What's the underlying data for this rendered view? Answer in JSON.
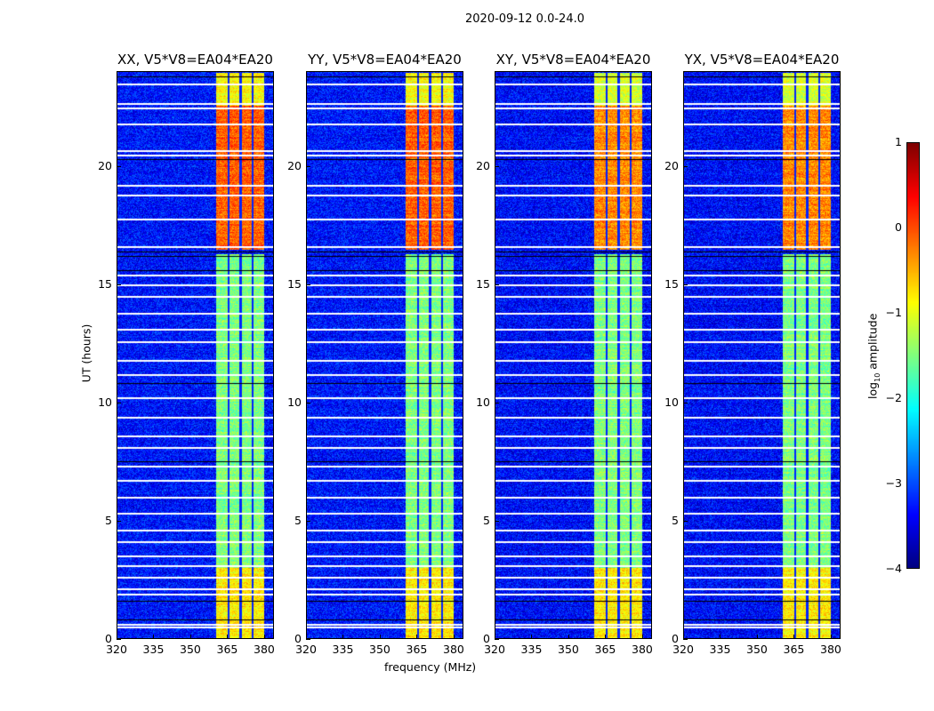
{
  "chart_data": {
    "type": "heatmap",
    "title": "2020-09-12 0.0-24.0",
    "xlabel": "frequency (MHz)",
    "ylabel": "UT (hours)",
    "xlim": [
      320,
      384
    ],
    "ylim": [
      0,
      24
    ],
    "xticks": [
      "320",
      "335",
      "350",
      "365",
      "380"
    ],
    "xtick_values": [
      320,
      335,
      350,
      365,
      380
    ],
    "yticks": [
      "0",
      "5",
      "10",
      "15",
      "20"
    ],
    "ytick_values": [
      0,
      5,
      10,
      15,
      20
    ],
    "panels": [
      {
        "title": "XX, V5*V8=EA04*EA20"
      },
      {
        "title": "YY, V5*V8=EA04*EA20"
      },
      {
        "title": "XY, V5*V8=EA04*EA20"
      },
      {
        "title": "YX, V5*V8=EA04*EA20"
      }
    ],
    "background_log_amplitude": -3.3,
    "rfi_band_mhz": [
      360.5,
      380
    ],
    "rfi_band_gaps_mhz": [
      365.5,
      370.5,
      375.5
    ],
    "rfi_band_levels": [
      {
        "ut": [
          0,
          3
        ],
        "level": -0.8
      },
      {
        "ut": [
          3,
          16.3
        ],
        "level": -1.5
      },
      {
        "ut": [
          16.5,
          22.6
        ],
        "level": -0.1
      },
      {
        "ut": [
          22.6,
          24
        ],
        "level": -0.9
      }
    ],
    "flagged_ut_white": [
      0.5,
      0.6,
      1.9,
      2.1,
      2.6,
      3.1,
      3.5,
      4.1,
      4.6,
      5.3,
      6.0,
      6.7,
      7.3,
      8.1,
      8.6,
      9.4,
      10.2,
      11.2,
      11.8,
      12.6,
      13.1,
      13.8,
      14.5,
      15.0,
      15.4,
      16.6,
      17.8,
      18.8,
      19.2,
      20.5,
      20.7,
      21.8,
      22.5,
      22.7,
      23.5
    ],
    "flagged_ut_black": [
      0.8,
      1.6,
      7.5,
      10.8,
      15.6,
      16.2,
      16.4,
      20.3,
      23.8
    ],
    "colorbar": {
      "label": "log10 amplitude",
      "label_main": "log",
      "label_sub": "10",
      "label_rest": " amplitude",
      "ticks": [
        "1",
        "0",
        "−1",
        "−2",
        "−3",
        "−4"
      ],
      "tick_values": [
        1,
        0,
        -1,
        -2,
        -3,
        -4
      ],
      "range": [
        -4,
        1
      ],
      "colormap": "jet"
    }
  }
}
